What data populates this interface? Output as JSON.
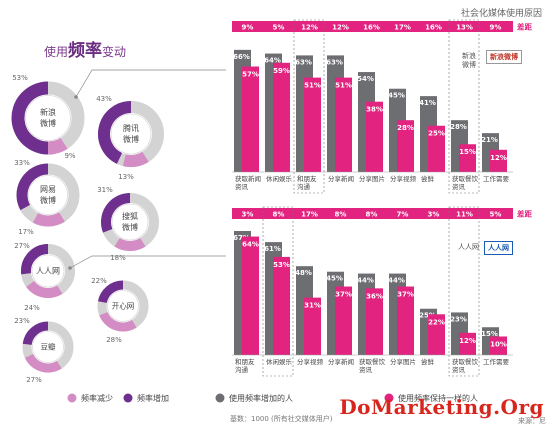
{
  "header": {
    "top_title": "社会化媒体使用原因",
    "left_title_prefix": "使用",
    "left_title_big": "频率",
    "left_title_suffix": "变动",
    "footnote": "基数：1000 (所有社交媒体用户)",
    "source": "来源：尼",
    "watermark": "DoMarketing.Org"
  },
  "colors": {
    "purple": "#6f2f8e",
    "pink": "#e2237f",
    "gray": "#6d6e71",
    "ring_gray": "#d3d3d3",
    "light_pink": "#d48cc4",
    "band_pink": "#e2237f"
  },
  "chart_data": [
    {
      "type": "pie",
      "title": "",
      "donuts": [
        {
          "name": "新浪微博",
          "label": [
            "新浪",
            "微博"
          ],
          "increase": 53,
          "decrease": 9
        },
        {
          "name": "腾讯微博",
          "label": [
            "腾讯",
            "微博"
          ],
          "increase": 43,
          "decrease": 13
        },
        {
          "name": "网易微博",
          "label": [
            "网易",
            "微博"
          ],
          "increase": 33,
          "decrease": 17
        },
        {
          "name": "搜狐微博",
          "label": [
            "搜狐",
            "微博"
          ],
          "increase": 31,
          "decrease": 18
        },
        {
          "name": "人人网",
          "label": [
            "人人网"
          ],
          "increase": 27,
          "decrease": 24
        },
        {
          "name": "开心网",
          "label": [
            "开心网"
          ],
          "increase": 22,
          "decrease": 28
        },
        {
          "name": "豆瓣",
          "label": [
            "豆瓣"
          ],
          "increase": 23,
          "decrease": 27
        }
      ],
      "legend": [
        "频率减少",
        "频率增加",
        "使用频率增加的人",
        "使用频率保持一样的人"
      ]
    },
    {
      "type": "bar",
      "title": "",
      "brand_text": [
        "新浪",
        "微博"
      ],
      "brand_logo": "新浪微博",
      "categories": [
        [
          "获取新闻",
          "资讯"
        ],
        [
          "休闲娱乐"
        ],
        [
          "和朋友",
          "沟通"
        ],
        [
          "分享新闻"
        ],
        [
          "分享图片"
        ],
        [
          "分享视频"
        ],
        [
          "尝鲜"
        ],
        [
          "获取餐饮",
          "资讯"
        ],
        [
          "工作需要"
        ]
      ],
      "series": [
        {
          "values": [
            66,
            64,
            63,
            63,
            54,
            45,
            41,
            28,
            21
          ]
        },
        {
          "values": [
            57,
            59,
            51,
            51,
            38,
            28,
            25,
            15,
            12
          ]
        }
      ],
      "band_label": "差距",
      "band_values": [
        "9%",
        "5%",
        "12%",
        "12%",
        "16%",
        "17%",
        "16%",
        "13%",
        "9%"
      ],
      "ylim": [
        0,
        75
      ]
    },
    {
      "type": "bar",
      "title": "",
      "brand_text": [
        "人人网"
      ],
      "brand_logo": "人人网",
      "categories": [
        [
          "和朋友",
          "沟通"
        ],
        [
          "休闲娱乐"
        ],
        [
          "分享视频"
        ],
        [
          "分享新闻"
        ],
        [
          "获取餐饮",
          "资讯"
        ],
        [
          "分享图片"
        ],
        [
          "尝鲜"
        ],
        [
          "获取餐饮",
          "资讯"
        ],
        [
          "工作需要"
        ]
      ],
      "series": [
        {
          "values": [
            67,
            61,
            48,
            45,
            44,
            44,
            25,
            23,
            15
          ]
        },
        {
          "values": [
            64,
            53,
            31,
            37,
            36,
            37,
            22,
            12,
            10
          ]
        }
      ],
      "band_label": "差距",
      "band_values": [
        "3%",
        "8%",
        "17%",
        "8%",
        "8%",
        "7%",
        "3%",
        "11%",
        "5%"
      ],
      "ylim": [
        0,
        75
      ]
    }
  ]
}
